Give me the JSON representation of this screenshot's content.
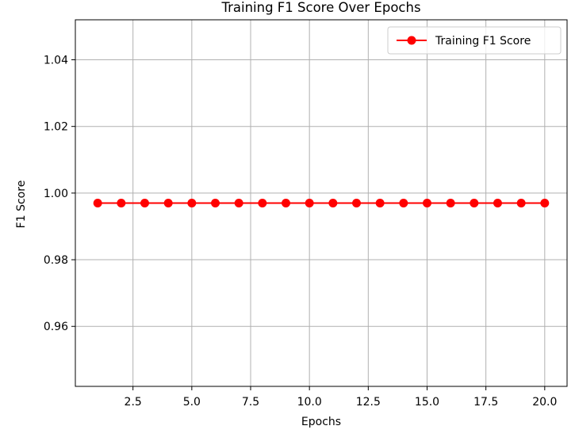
{
  "chart_data": {
    "type": "line",
    "title": "Training F1 Score Over Epochs",
    "xlabel": "Epochs",
    "ylabel": "F1 Score",
    "xlim": [
      0.05,
      20.95
    ],
    "ylim": [
      0.942,
      1.052
    ],
    "x_ticks": [
      2.5,
      5.0,
      7.5,
      10.0,
      12.5,
      15.0,
      17.5,
      20.0
    ],
    "x_tick_labels": [
      "2.5",
      "5.0",
      "7.5",
      "10.0",
      "12.5",
      "15.0",
      "17.5",
      "20.0"
    ],
    "y_ticks": [
      0.96,
      0.98,
      1.0,
      1.02,
      1.04
    ],
    "y_tick_labels": [
      "0.96",
      "0.98",
      "1.00",
      "1.02",
      "1.04"
    ],
    "grid": true,
    "legend_position": "top-right",
    "series": [
      {
        "name": "Training F1 Score",
        "color": "#ff0000",
        "marker": "circle",
        "x": [
          1,
          2,
          3,
          4,
          5,
          6,
          7,
          8,
          9,
          10,
          11,
          12,
          13,
          14,
          15,
          16,
          17,
          18,
          19,
          20
        ],
        "values": [
          0.997,
          0.997,
          0.997,
          0.997,
          0.997,
          0.997,
          0.997,
          0.997,
          0.997,
          0.997,
          0.997,
          0.997,
          0.997,
          0.997,
          0.997,
          0.997,
          0.997,
          0.997,
          0.997,
          0.997
        ]
      }
    ]
  }
}
